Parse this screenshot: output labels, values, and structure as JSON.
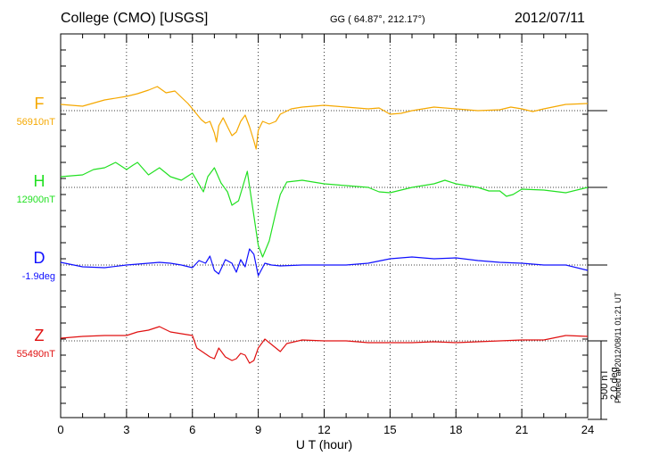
{
  "header": {
    "station": "College (CMO)  [USGS]",
    "coords": "GG ( 64.87°, 212.17°)",
    "date": "2012/07/11"
  },
  "plotted_note": "Plotted at 2012/08/11 01:21  UT",
  "scale_note": {
    "line1": "500 nT",
    "line2": "2.0 deg"
  },
  "chart_data": {
    "type": "line",
    "xlabel": "U T (hour)",
    "x_ticks": [
      0,
      3,
      6,
      9,
      12,
      15,
      18,
      21,
      24
    ],
    "xlim": [
      0,
      24
    ],
    "grid": true,
    "series": [
      {
        "name": "F",
        "baseline_label": "56910nT",
        "color": "#f5a800",
        "points": [
          [
            0,
            -7
          ],
          [
            1,
            -5
          ],
          [
            2,
            -12
          ],
          [
            3,
            -16
          ],
          [
            3.5,
            -19
          ],
          [
            4,
            -23
          ],
          [
            4.4,
            -27
          ],
          [
            4.8,
            -20
          ],
          [
            5.2,
            -22
          ],
          [
            5.5,
            -15
          ],
          [
            5.8,
            -8
          ],
          [
            6,
            -2
          ],
          [
            6.2,
            4
          ],
          [
            6.4,
            10
          ],
          [
            6.6,
            14
          ],
          [
            6.8,
            12
          ],
          [
            7,
            25
          ],
          [
            7.1,
            35
          ],
          [
            7.2,
            17
          ],
          [
            7.4,
            8
          ],
          [
            7.6,
            18
          ],
          [
            7.8,
            28
          ],
          [
            8,
            24
          ],
          [
            8.2,
            12
          ],
          [
            8.4,
            5
          ],
          [
            8.6,
            18
          ],
          [
            8.8,
            34
          ],
          [
            8.9,
            43
          ],
          [
            9,
            22
          ],
          [
            9.2,
            12
          ],
          [
            9.5,
            15
          ],
          [
            9.8,
            12
          ],
          [
            10,
            4
          ],
          [
            10.5,
            -2
          ],
          [
            11,
            -4
          ],
          [
            12,
            -6
          ],
          [
            13,
            -4
          ],
          [
            14,
            -2
          ],
          [
            14.5,
            -3
          ],
          [
            15,
            4
          ],
          [
            15.5,
            3
          ],
          [
            16,
            0
          ],
          [
            17,
            -4
          ],
          [
            18,
            -2
          ],
          [
            19,
            0
          ],
          [
            20,
            -1
          ],
          [
            20.5,
            -4
          ],
          [
            21,
            -2
          ],
          [
            21.5,
            1
          ],
          [
            22,
            -2
          ],
          [
            23,
            -7
          ],
          [
            24,
            -8
          ]
        ]
      },
      {
        "name": "H",
        "baseline_label": "12900nT",
        "color": "#22e022",
        "points": [
          [
            0,
            -12
          ],
          [
            1,
            -14
          ],
          [
            1.5,
            -20
          ],
          [
            2,
            -22
          ],
          [
            2.5,
            -28
          ],
          [
            3,
            -20
          ],
          [
            3.3,
            -25
          ],
          [
            3.5,
            -28
          ],
          [
            4,
            -14
          ],
          [
            4.5,
            -22
          ],
          [
            5,
            -12
          ],
          [
            5.5,
            -8
          ],
          [
            6,
            -16
          ],
          [
            6.5,
            5
          ],
          [
            6.7,
            -12
          ],
          [
            7,
            -22
          ],
          [
            7.3,
            -5
          ],
          [
            7.6,
            5
          ],
          [
            7.8,
            20
          ],
          [
            8.1,
            15
          ],
          [
            8.5,
            -18
          ],
          [
            8.7,
            15
          ],
          [
            9,
            65
          ],
          [
            9.2,
            78
          ],
          [
            9.5,
            60
          ],
          [
            9.8,
            28
          ],
          [
            10,
            8
          ],
          [
            10.3,
            -6
          ],
          [
            11,
            -8
          ],
          [
            12,
            -4
          ],
          [
            13,
            -2
          ],
          [
            14,
            0
          ],
          [
            14.5,
            5
          ],
          [
            15,
            6
          ],
          [
            16,
            0
          ],
          [
            17,
            -4
          ],
          [
            17.5,
            -8
          ],
          [
            18,
            -4
          ],
          [
            19,
            0
          ],
          [
            19.5,
            4
          ],
          [
            20,
            4
          ],
          [
            20.3,
            10
          ],
          [
            20.6,
            8
          ],
          [
            21,
            2
          ],
          [
            22,
            3
          ],
          [
            23,
            6
          ],
          [
            24,
            0
          ]
        ]
      },
      {
        "name": "D",
        "baseline_label": "-1.9deg",
        "color": "#1010ff",
        "points": [
          [
            0,
            -3
          ],
          [
            1,
            2
          ],
          [
            2,
            3
          ],
          [
            3,
            0
          ],
          [
            3.5,
            -1
          ],
          [
            4,
            -2
          ],
          [
            4.5,
            -3
          ],
          [
            5,
            -2
          ],
          [
            5.5,
            0
          ],
          [
            6,
            3
          ],
          [
            6.3,
            -5
          ],
          [
            6.6,
            -2
          ],
          [
            6.8,
            -10
          ],
          [
            7,
            6
          ],
          [
            7.2,
            10
          ],
          [
            7.5,
            -6
          ],
          [
            7.8,
            -2
          ],
          [
            8,
            8
          ],
          [
            8.2,
            -6
          ],
          [
            8.4,
            2
          ],
          [
            8.5,
            -8
          ],
          [
            8.6,
            -18
          ],
          [
            8.8,
            -12
          ],
          [
            9,
            12
          ],
          [
            9.3,
            -2
          ],
          [
            9.6,
            0
          ],
          [
            10,
            1
          ],
          [
            11,
            0
          ],
          [
            12,
            0
          ],
          [
            13,
            0
          ],
          [
            14,
            -2
          ],
          [
            15,
            -7
          ],
          [
            16,
            -9
          ],
          [
            17,
            -7
          ],
          [
            18,
            -8
          ],
          [
            19,
            -5
          ],
          [
            20,
            -3
          ],
          [
            21,
            -2
          ],
          [
            22,
            0
          ],
          [
            23,
            0
          ],
          [
            24,
            6
          ]
        ]
      },
      {
        "name": "Z",
        "baseline_label": "55490nT",
        "color": "#e01010",
        "points": [
          [
            0,
            -3
          ],
          [
            1,
            -5
          ],
          [
            2,
            -6
          ],
          [
            3,
            -6
          ],
          [
            3.5,
            -10
          ],
          [
            4,
            -12
          ],
          [
            4.5,
            -16
          ],
          [
            5,
            -10
          ],
          [
            5.5,
            -8
          ],
          [
            6,
            -6
          ],
          [
            6.2,
            8
          ],
          [
            6.5,
            13
          ],
          [
            6.8,
            18
          ],
          [
            7,
            20
          ],
          [
            7.2,
            8
          ],
          [
            7.5,
            18
          ],
          [
            7.8,
            22
          ],
          [
            8,
            20
          ],
          [
            8.2,
            14
          ],
          [
            8.4,
            16
          ],
          [
            8.6,
            25
          ],
          [
            8.8,
            22
          ],
          [
            9,
            8
          ],
          [
            9.3,
            -2
          ],
          [
            9.6,
            4
          ],
          [
            10,
            12
          ],
          [
            10.3,
            3
          ],
          [
            11,
            -1
          ],
          [
            12,
            0
          ],
          [
            13,
            0
          ],
          [
            14,
            2
          ],
          [
            15,
            2
          ],
          [
            16,
            2
          ],
          [
            17,
            1
          ],
          [
            18,
            2
          ],
          [
            19,
            1
          ],
          [
            20,
            0
          ],
          [
            21,
            -1
          ],
          [
            22,
            -1
          ],
          [
            23,
            -6
          ],
          [
            24,
            -5
          ]
        ]
      }
    ]
  }
}
